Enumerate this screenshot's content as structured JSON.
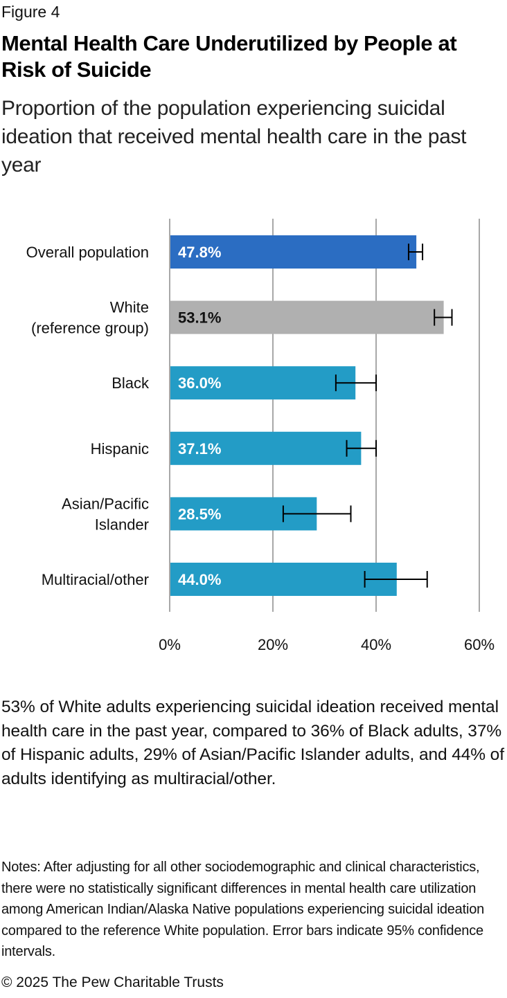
{
  "figure_label": "Figure 4",
  "title": "Mental Health Care Underutilized by People at Risk of Suicide",
  "subtitle": "Proportion of the population experiencing suicidal ideation that received mental health care in the past year",
  "caption": "53% of White adults experiencing suicidal ideation received mental health care in the past year, compared to 36% of Black adults, 37% of Hispanic adults, 29% of Asian/Pacific Islander adults, and 44% of adults identifying as multiracial/other.",
  "notes": "Notes: After adjusting for all other sociodemographic and clinical characteristics, there were no statistically significant differences in mental health care utilization among American Indian/Alaska Native populations experiencing suicidal ideation compared to the reference White population. Error bars indicate 95% confidence intervals.",
  "copyright": "© 2025 The Pew Charitable Trusts",
  "chart_data": {
    "type": "bar",
    "orientation": "horizontal",
    "title": "Mental Health Care Underutilized by People at Risk of Suicide",
    "xlabel": "",
    "ylabel": "",
    "xlim": [
      0,
      60
    ],
    "x_ticks": [
      0,
      20,
      40,
      60
    ],
    "x_tick_labels": [
      "0%",
      "20%",
      "40%",
      "60%"
    ],
    "grid": true,
    "legend": "none",
    "categories": [
      [
        "Overall population"
      ],
      [
        "White ",
        "(reference group)"
      ],
      [
        "Black"
      ],
      [
        "Hispanic"
      ],
      [
        "Asian/Pacific",
        "Islander"
      ],
      [
        "Multiracial/other"
      ]
    ],
    "values": [
      47.8,
      53.1,
      36.0,
      37.1,
      28.5,
      44.0
    ],
    "value_labels": [
      "47.8%",
      "53.1%",
      "36.0%",
      "37.1%",
      "28.5%",
      "44.0%"
    ],
    "error_bars_95ci": [
      [
        46.3,
        49.0
      ],
      [
        51.3,
        54.7
      ],
      [
        32.2,
        40.0
      ],
      [
        34.3,
        40.0
      ],
      [
        22.0,
        35.1
      ],
      [
        37.8,
        49.9
      ]
    ],
    "bar_colors": [
      "#2b6dc2",
      "#b0b0b0",
      "#239cc6",
      "#239cc6",
      "#239cc6",
      "#239cc6"
    ],
    "label_colors": [
      "#ffffff",
      "#111111",
      "#ffffff",
      "#ffffff",
      "#ffffff",
      "#ffffff"
    ],
    "grid_color": "#a8a8a8",
    "error_bar_color": "#000000"
  }
}
